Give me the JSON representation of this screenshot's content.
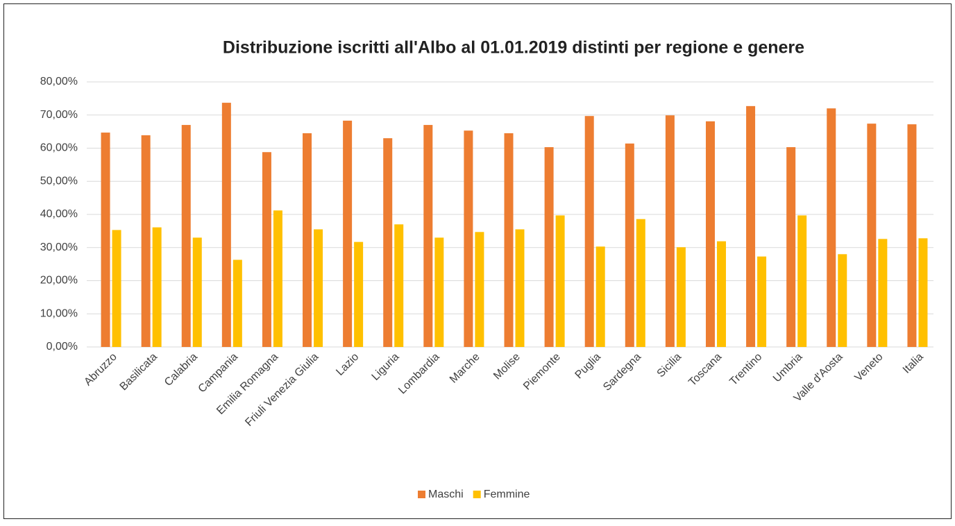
{
  "chart_data": {
    "type": "bar",
    "title": "Distribuzione iscritti all'Albo al 01.01.2019 distinti per regione e genere",
    "categories": [
      "Abruzzo",
      "Basilicata",
      "Calabria",
      "Campania",
      "Emilia Romagna",
      "Friuli Venezia Giulia",
      "Lazio",
      "Liguria",
      "Lombardia",
      "Marche",
      "Molise",
      "Piemonte",
      "Puglia",
      "Sardegna",
      "Sicilia",
      "Toscana",
      "Trentino",
      "Umbria",
      "Valle d'Aosta",
      "Veneto",
      "Italia"
    ],
    "series": [
      {
        "name": "Maschi",
        "color": "#ed7d31",
        "values": [
          64.7,
          63.9,
          67.0,
          73.7,
          58.8,
          64.5,
          68.3,
          63.0,
          67.0,
          65.3,
          64.5,
          60.3,
          69.7,
          61.4,
          69.9,
          68.1,
          72.7,
          60.3,
          72.0,
          67.4,
          67.2
        ]
      },
      {
        "name": "Femmine",
        "color": "#ffc000",
        "values": [
          35.3,
          36.1,
          33.0,
          26.3,
          41.2,
          35.5,
          31.7,
          37.0,
          33.0,
          34.7,
          35.5,
          39.7,
          30.3,
          38.6,
          30.1,
          31.9,
          27.3,
          39.7,
          28.0,
          32.6,
          32.8
        ]
      }
    ],
    "ylim": [
      0,
      80
    ],
    "yticks": [
      {
        "value": 0,
        "label": "0,00%"
      },
      {
        "value": 10,
        "label": "10,00%"
      },
      {
        "value": 20,
        "label": "20,00%"
      },
      {
        "value": 30,
        "label": "30,00%"
      },
      {
        "value": 40,
        "label": "40,00%"
      },
      {
        "value": 50,
        "label": "50,00%"
      },
      {
        "value": 60,
        "label": "60,00%"
      },
      {
        "value": 70,
        "label": "70,00%"
      },
      {
        "value": 80,
        "label": "80,00%"
      }
    ],
    "grid": true,
    "legend": "bottom"
  }
}
